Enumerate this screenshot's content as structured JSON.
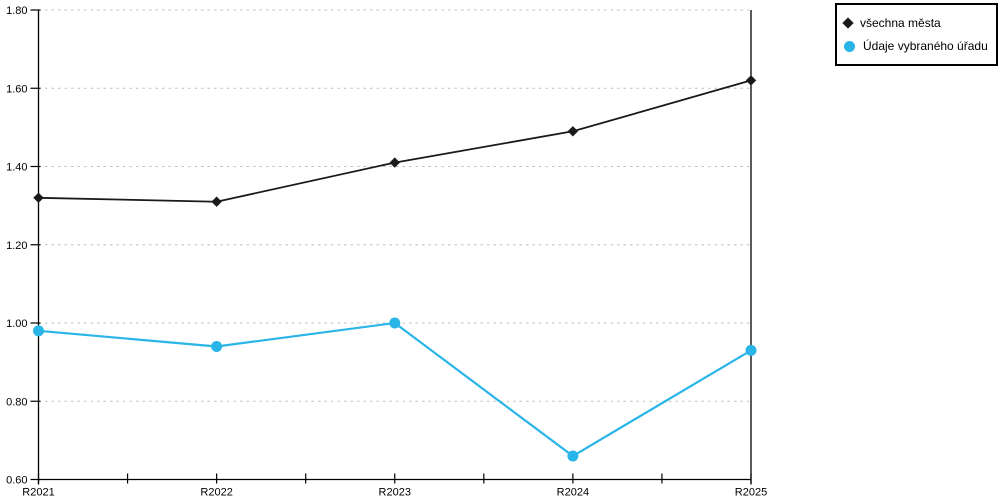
{
  "chart_data": {
    "type": "line",
    "title": "",
    "xlabel": "",
    "ylabel": "",
    "categories": [
      "R2021",
      "R2022",
      "R2023",
      "R2024",
      "R2025"
    ],
    "series": [
      {
        "name": "všechna města",
        "color": "#1a1a1a",
        "marker": "diamond",
        "values": [
          1.32,
          1.31,
          1.41,
          1.49,
          1.62
        ]
      },
      {
        "name": "Údaje vybraného úřadu",
        "color": "#29b5e8",
        "marker": "circle",
        "values": [
          0.98,
          0.94,
          1.0,
          0.66,
          0.93
        ]
      }
    ],
    "ylim": [
      0.6,
      1.8
    ],
    "y_ticks": [
      0.6,
      0.8,
      1.0,
      1.2,
      1.4,
      1.6,
      1.8
    ],
    "y_tick_labels": [
      "0.60",
      "0.80",
      "1.00",
      "1.20",
      "1.40",
      "1.60",
      "1.80"
    ],
    "grid": "horizontal dashed",
    "legend_position": "top-right",
    "colors": {
      "grid": "#bfbfbf",
      "axis": "#000000",
      "text": "#000000",
      "background": "#ffffff"
    }
  }
}
